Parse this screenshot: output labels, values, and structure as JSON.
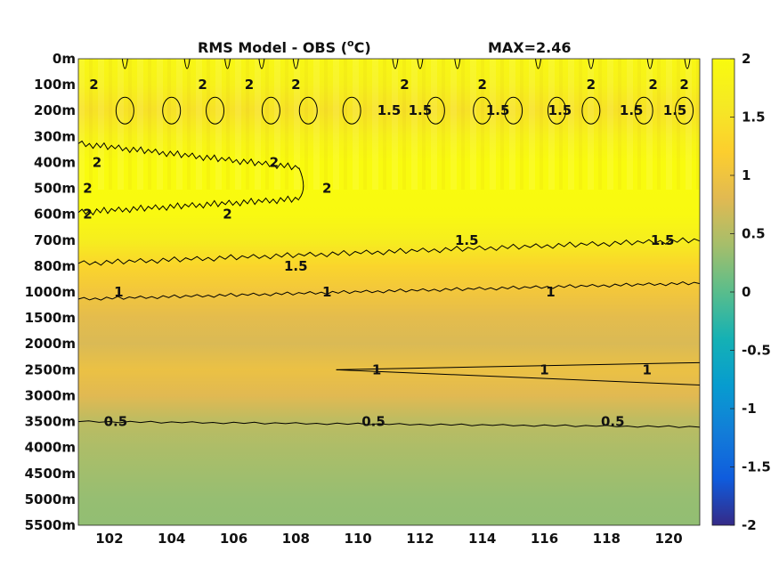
{
  "chart_data": {
    "type": "heatmap",
    "title": "RMS Model - OBS (",
    "title_unit_sup": "o",
    "title_unit": "C)",
    "max_label": "MAX=2.46",
    "xlabel": "",
    "ylabel": "",
    "x_ticks": [
      102,
      104,
      106,
      108,
      110,
      112,
      114,
      116,
      118,
      120
    ],
    "xlim": [
      101,
      121
    ],
    "y_ticks": [
      "0m",
      "100m",
      "200m",
      "300m",
      "400m",
      "500m",
      "600m",
      "700m",
      "800m",
      "1000m",
      "1500m",
      "2000m",
      "2500m",
      "3000m",
      "3500m",
      "4000m",
      "4500m",
      "5000m",
      "5500m"
    ],
    "colorbar": {
      "range": [
        -2,
        2
      ],
      "ticks": [
        "2",
        "1.5",
        "1",
        "0.5",
        "0",
        "-0.5",
        "-1",
        "-1.5",
        "-2"
      ],
      "colormap": "parula"
    },
    "depth_profile": {
      "levels": [
        "0m",
        "100m",
        "200m",
        "300m",
        "400m",
        "500m",
        "600m",
        "700m",
        "800m",
        "1000m",
        "1500m",
        "2000m",
        "2500m",
        "3000m",
        "3500m",
        "4000m",
        "4500m",
        "5000m",
        "5500m"
      ],
      "rms": [
        1.9,
        1.8,
        1.5,
        1.8,
        2.05,
        2.1,
        1.95,
        1.7,
        1.3,
        1.05,
        0.85,
        0.75,
        0.95,
        0.8,
        0.55,
        0.45,
        0.38,
        0.32,
        0.3
      ]
    },
    "contour_labels": [
      {
        "text": "2",
        "x": 101.5,
        "depth": "100m"
      },
      {
        "text": "2",
        "x": 105.0,
        "depth": "100m"
      },
      {
        "text": "2",
        "x": 106.5,
        "depth": "100m"
      },
      {
        "text": "2",
        "x": 108.0,
        "depth": "100m"
      },
      {
        "text": "2",
        "x": 111.5,
        "depth": "100m"
      },
      {
        "text": "2",
        "x": 114.0,
        "depth": "100m"
      },
      {
        "text": "2",
        "x": 117.5,
        "depth": "100m"
      },
      {
        "text": "2",
        "x": 119.5,
        "depth": "100m"
      },
      {
        "text": "2",
        "x": 120.5,
        "depth": "100m"
      },
      {
        "text": "1.5",
        "x": 111.0,
        "depth": "200m"
      },
      {
        "text": "1.5",
        "x": 112.0,
        "depth": "200m"
      },
      {
        "text": "1.5",
        "x": 114.5,
        "depth": "200m"
      },
      {
        "text": "1.5",
        "x": 116.5,
        "depth": "200m"
      },
      {
        "text": "1.5",
        "x": 118.8,
        "depth": "200m"
      },
      {
        "text": "1.5",
        "x": 120.2,
        "depth": "200m"
      },
      {
        "text": "2",
        "x": 101.6,
        "depth": "400m"
      },
      {
        "text": "2",
        "x": 107.3,
        "depth": "400m"
      },
      {
        "text": "2",
        "x": 101.3,
        "depth": "500m"
      },
      {
        "text": "2",
        "x": 109.0,
        "depth": "500m"
      },
      {
        "text": "2",
        "x": 101.3,
        "depth": "600m"
      },
      {
        "text": "2",
        "x": 105.8,
        "depth": "600m"
      },
      {
        "text": "1.5",
        "x": 108.0,
        "depth": "800m"
      },
      {
        "text": "1.5",
        "x": 113.5,
        "depth": "700m"
      },
      {
        "text": "1.5",
        "x": 119.8,
        "depth": "700m"
      },
      {
        "text": "1",
        "x": 102.3,
        "depth": "1000m"
      },
      {
        "text": "1",
        "x": 109.0,
        "depth": "1000m"
      },
      {
        "text": "1",
        "x": 116.2,
        "depth": "1000m"
      },
      {
        "text": "1",
        "x": 110.6,
        "depth": "2500m"
      },
      {
        "text": "1",
        "x": 119.3,
        "depth": "2500m"
      },
      {
        "text": "1",
        "x": 116.0,
        "depth": "2500m"
      },
      {
        "text": "0.5",
        "x": 102.2,
        "depth": "3500m"
      },
      {
        "text": "0.5",
        "x": 110.5,
        "depth": "3500m"
      },
      {
        "text": "0.5",
        "x": 118.2,
        "depth": "3500m"
      }
    ]
  }
}
